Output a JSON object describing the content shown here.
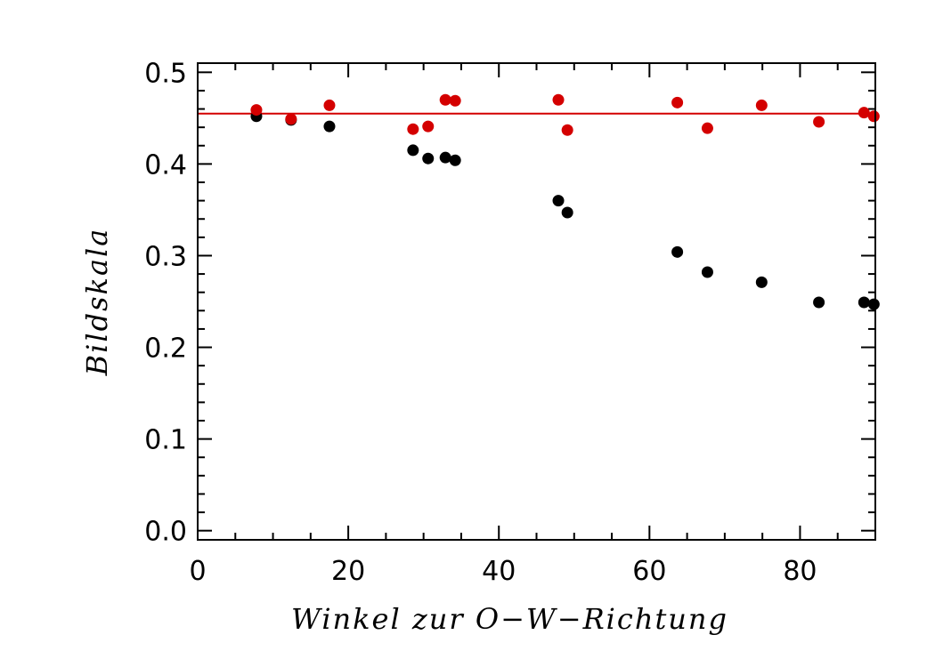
{
  "chart_data": {
    "type": "scatter",
    "xlabel": "Winkel zur O−W−Richtung",
    "ylabel": "Bildskala",
    "xlim": [
      0,
      90
    ],
    "ylim": [
      -0.01,
      0.51
    ],
    "x_ticks": [
      0,
      20,
      40,
      60,
      80
    ],
    "x_tick_labels": [
      "0",
      "20",
      "40",
      "60",
      "80"
    ],
    "y_ticks": [
      0.0,
      0.1,
      0.2,
      0.3,
      0.4,
      0.5
    ],
    "y_tick_labels": [
      "0.0",
      "0.1",
      "0.2",
      "0.3",
      "0.4",
      "0.5"
    ],
    "grid": false,
    "series": [
      {
        "color": "#000000",
        "points": [
          {
            "x": 7.8,
            "y": 0.452
          },
          {
            "x": 12.4,
            "y": 0.448
          },
          {
            "x": 17.5,
            "y": 0.441
          },
          {
            "x": 28.6,
            "y": 0.415
          },
          {
            "x": 30.6,
            "y": 0.406
          },
          {
            "x": 32.9,
            "y": 0.407
          },
          {
            "x": 34.2,
            "y": 0.404
          },
          {
            "x": 47.9,
            "y": 0.36
          },
          {
            "x": 49.1,
            "y": 0.347
          },
          {
            "x": 63.7,
            "y": 0.304
          },
          {
            "x": 67.7,
            "y": 0.282
          },
          {
            "x": 74.9,
            "y": 0.271
          },
          {
            "x": 82.5,
            "y": 0.249
          },
          {
            "x": 88.5,
            "y": 0.249
          },
          {
            "x": 89.8,
            "y": 0.247
          }
        ]
      },
      {
        "color": "#d40000",
        "points": [
          {
            "x": 7.8,
            "y": 0.459
          },
          {
            "x": 12.4,
            "y": 0.449
          },
          {
            "x": 17.5,
            "y": 0.464
          },
          {
            "x": 28.6,
            "y": 0.438
          },
          {
            "x": 30.6,
            "y": 0.441
          },
          {
            "x": 32.9,
            "y": 0.47
          },
          {
            "x": 34.2,
            "y": 0.469
          },
          {
            "x": 47.9,
            "y": 0.47
          },
          {
            "x": 49.1,
            "y": 0.437
          },
          {
            "x": 63.7,
            "y": 0.467
          },
          {
            "x": 67.7,
            "y": 0.439
          },
          {
            "x": 74.9,
            "y": 0.464
          },
          {
            "x": 82.5,
            "y": 0.446
          },
          {
            "x": 88.5,
            "y": 0.456
          },
          {
            "x": 89.8,
            "y": 0.452
          }
        ]
      }
    ],
    "reference_line": {
      "y": 0.455,
      "color": "#d40000"
    }
  }
}
